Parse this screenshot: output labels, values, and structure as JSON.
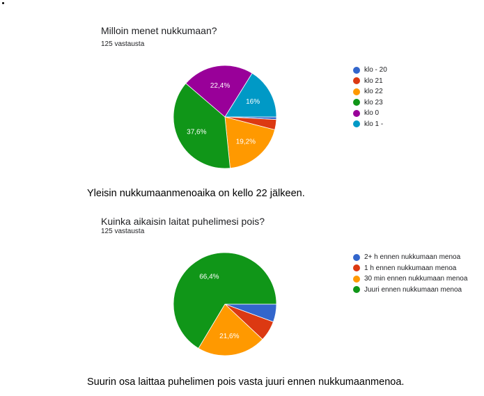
{
  "chart_data": [
    {
      "type": "pie",
      "title": "Milloin menet nukkumaan?",
      "subtitle": "125 vastausta",
      "categories": [
        "klo - 20",
        "klo 21",
        "klo 22",
        "klo 23",
        "klo 0",
        "klo 1 -"
      ],
      "values": [
        0.8,
        3.2,
        19.2,
        37.6,
        22.4,
        16.0
      ],
      "slice_labels": [
        "",
        "",
        "19,2%",
        "37,6%",
        "22,4%",
        "16%"
      ],
      "colors": [
        "#3366cc",
        "#dc3912",
        "#ff9900",
        "#109618",
        "#990099",
        "#0099c6"
      ],
      "legend_position": "right"
    },
    {
      "type": "pie",
      "title": "Kuinka aikaisin laitat puhelimesi pois?",
      "subtitle": "125 vastausta",
      "categories": [
        "2+ h ennen nukkumaan menoa",
        "1 h ennen nukkumaan menoa",
        "30 min ennen nukkumaan menoa",
        "Juuri ennen nukkumaan menoa"
      ],
      "values": [
        5.6,
        6.4,
        21.6,
        66.4
      ],
      "slice_labels": [
        "",
        "",
        "21,6%",
        "66,4%"
      ],
      "colors": [
        "#3366cc",
        "#dc3912",
        "#ff9900",
        "#109618"
      ],
      "legend_position": "right"
    }
  ],
  "captions": [
    "Yleisin nukkumaanmenoaika on kello 22 jälkeen.",
    "Suurin osa laittaa puhelimen pois vasta juuri ennen nukkumaanmenoa."
  ]
}
